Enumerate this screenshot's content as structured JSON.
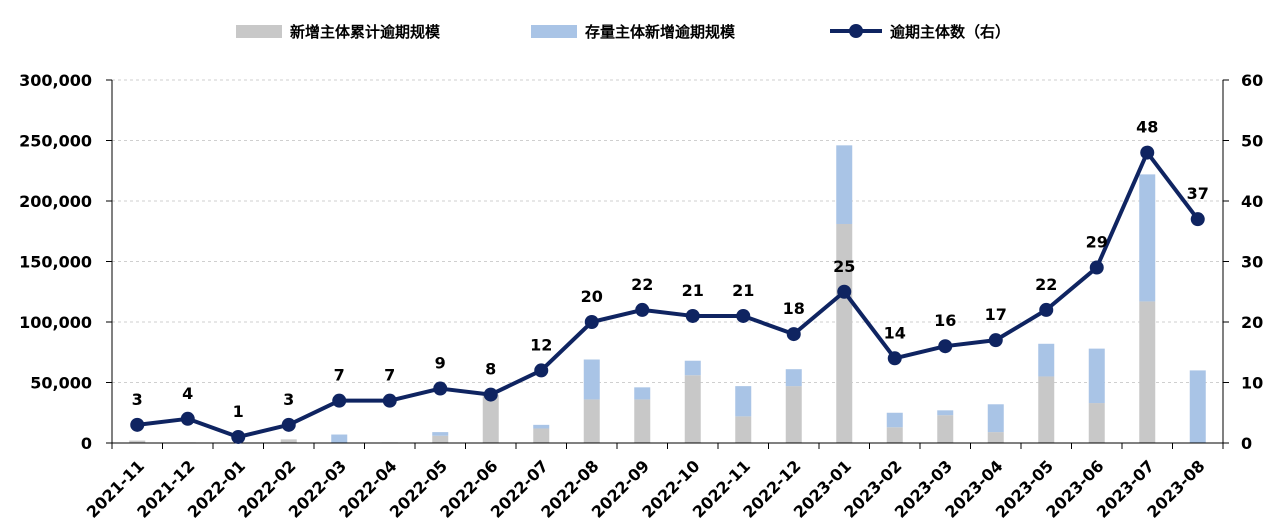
{
  "legend": {
    "bar1": "新增主体累计逾期规模",
    "bar2": "存量主体新增逾期规模",
    "line": "逾期主体数（右）"
  },
  "colors": {
    "bar1": "#c8c8c8",
    "bar2": "#a9c4e6",
    "line": "#0f2461",
    "grid": "#cfcfcf",
    "axis": "#000000"
  },
  "chart_data": {
    "type": "bar",
    "combo": "stacked-bar-with-line-on-right-axis",
    "categories": [
      "2021-11",
      "2021-12",
      "2022-01",
      "2022-02",
      "2022-03",
      "2022-04",
      "2022-05",
      "2022-06",
      "2022-07",
      "2022-08",
      "2022-09",
      "2022-10",
      "2022-11",
      "2022-12",
      "2023-01",
      "2023-02",
      "2023-03",
      "2023-04",
      "2023-05",
      "2023-06",
      "2023-07",
      "2023-08"
    ],
    "series": [
      {
        "name": "新增主体累计逾期规模",
        "kind": "bar",
        "axis": "left",
        "values": [
          2000,
          500,
          300,
          3000,
          0,
          500,
          6000,
          40000,
          12000,
          36000,
          36000,
          56000,
          22000,
          47000,
          181000,
          13000,
          23000,
          9000,
          55000,
          33000,
          117000,
          0
        ]
      },
      {
        "name": "存量主体新增逾期规模",
        "kind": "bar",
        "axis": "left",
        "values": [
          0,
          0,
          0,
          0,
          7000,
          0,
          3000,
          0,
          3000,
          33000,
          10000,
          12000,
          25000,
          14000,
          65000,
          12000,
          4000,
          23000,
          27000,
          45000,
          105000,
          60000
        ]
      },
      {
        "name": "逾期主体数（右）",
        "kind": "line",
        "axis": "right",
        "values": [
          3,
          4,
          1,
          3,
          7,
          7,
          9,
          8,
          12,
          20,
          22,
          21,
          21,
          18,
          25,
          14,
          16,
          17,
          22,
          29,
          48,
          37
        ]
      }
    ],
    "y_left": {
      "min": 0,
      "max": 300000,
      "ticks": [
        "0",
        "50,000",
        "100,000",
        "150,000",
        "200,000",
        "250,000",
        "300,000"
      ]
    },
    "y_right": {
      "min": 0,
      "max": 60,
      "ticks": [
        "0",
        "10",
        "20",
        "30",
        "40",
        "50",
        "60"
      ]
    },
    "grid": "horizontal-dashed",
    "legend_position": "top"
  }
}
